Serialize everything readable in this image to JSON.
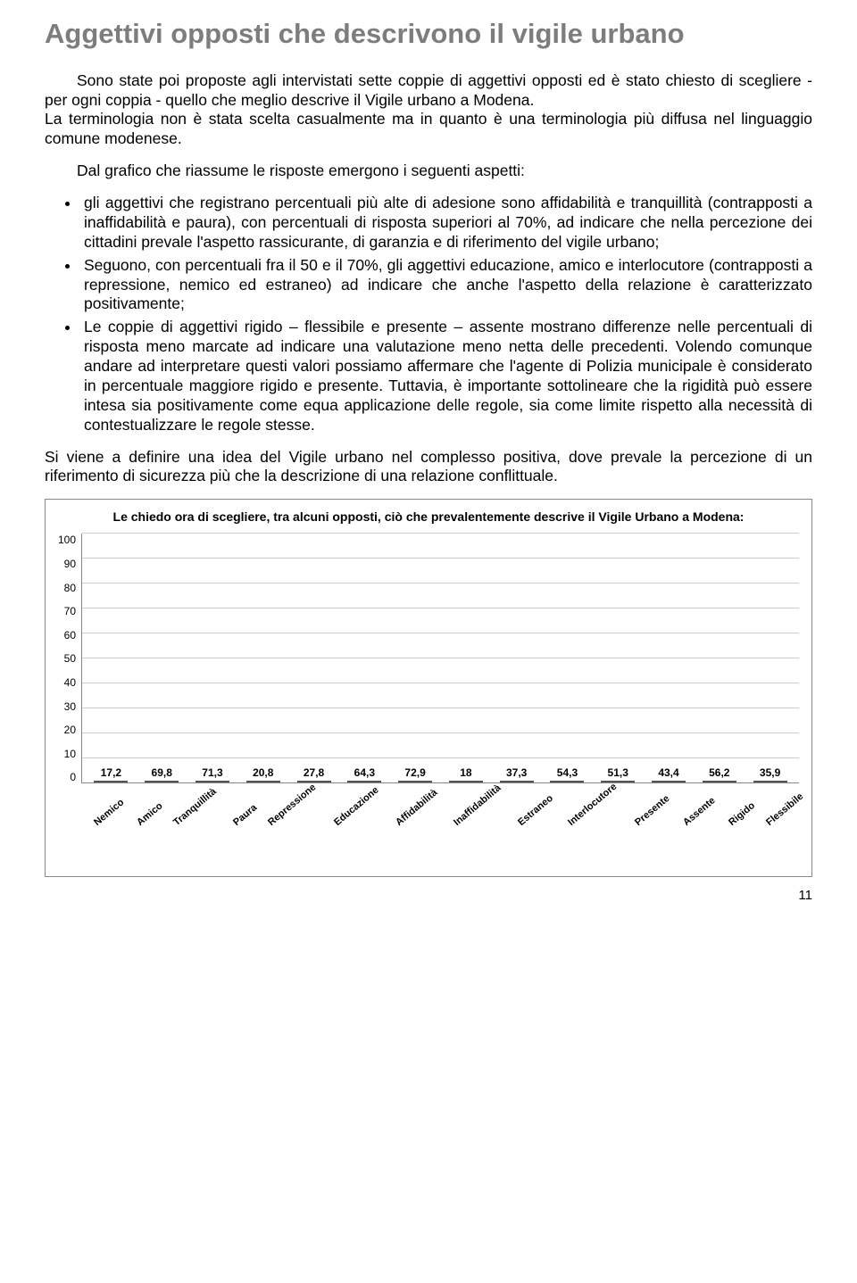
{
  "title": "Aggettivi opposti che descrivono il vigile urbano",
  "p1": "Sono state poi proposte agli intervistati sette coppie di aggettivi opposti ed è stato chiesto di scegliere - per ogni coppia - quello che meglio descrive il Vigile urbano a Modena.",
  "p2": "La terminologia non è stata scelta casualmente ma in quanto è una terminologia più diffusa nel linguaggio comune modenese.",
  "p3": "Dal grafico che riassume le risposte emergono i seguenti aspetti:",
  "b1": "gli aggettivi che registrano percentuali più alte di adesione sono affidabilità e tranquillità (contrapposti a inaffidabilità e paura), con percentuali di risposta superiori al 70%, ad indicare che nella percezione dei cittadini prevale l'aspetto rassicurante, di garanzia e di riferimento del vigile urbano;",
  "b2": "Seguono, con percentuali fra il 50 e il 70%, gli aggettivi educazione, amico e interlocutore (contrapposti a repressione, nemico ed estraneo) ad indicare che anche l'aspetto della relazione è caratterizzato positivamente;",
  "b3": "Le coppie di aggettivi rigido – flessibile e presente – assente mostrano differenze nelle percentuali di risposta meno marcate ad indicare una valutazione meno netta delle precedenti. Volendo comunque andare ad interpretare questi valori possiamo affermare che l'agente di Polizia municipale è considerato in percentuale maggiore rigido e presente. Tuttavia, è importante sottolineare che la rigidità può essere intesa sia positivamente come equa applicazione delle regole, sia come limite rispetto alla necessità di contestualizzare le regole stesse.",
  "p4": "Si viene a definire una idea del Vigile urbano nel complesso positiva, dove prevale la percezione di un riferimento di sicurezza più che la descrizione di una relazione conflittuale.",
  "chart": {
    "title": "Le chiedo ora di scegliere, tra alcuni opposti, ciò che prevalentemente descrive il Vigile Urbano a Modena:",
    "ymax": 100,
    "ytick_step": 10,
    "grid_color": "#cccccc",
    "border_color": "#888888",
    "categories": [
      "Nemico",
      "Amico",
      "Tranquillità",
      "Paura",
      "Repressione",
      "Educazione",
      "Affidabilità",
      "Inaffidabilità",
      "Estraneo",
      "Interlocutore",
      "Presente",
      "Assente",
      "Rigido",
      "Flessibile"
    ],
    "values": [
      17.2,
      69.8,
      71.3,
      20.8,
      27.8,
      64.3,
      72.9,
      18,
      37.3,
      54.3,
      51.3,
      43.4,
      56.2,
      35.9
    ],
    "value_labels": [
      "17,2",
      "69,8",
      "71,3",
      "20,8",
      "27,8",
      "64,3",
      "72,9",
      "18",
      "37,3",
      "54,3",
      "51,3",
      "43,4",
      "56,2",
      "35,9"
    ],
    "bar_colors": [
      "#ff9900",
      "#ff9900",
      "#00ffff",
      "#00ffff",
      "#009900",
      "#009900",
      "#800080",
      "#800080",
      "#4a86e8",
      "#4a86e8",
      "#ffcc99",
      "#ffcc99",
      "#008000",
      "#008000"
    ]
  },
  "yticks": {
    "0": "0",
    "1": "10",
    "2": "20",
    "3": "30",
    "4": "40",
    "5": "50",
    "6": "60",
    "7": "70",
    "8": "80",
    "9": "90",
    "10": "100"
  },
  "page": "11"
}
